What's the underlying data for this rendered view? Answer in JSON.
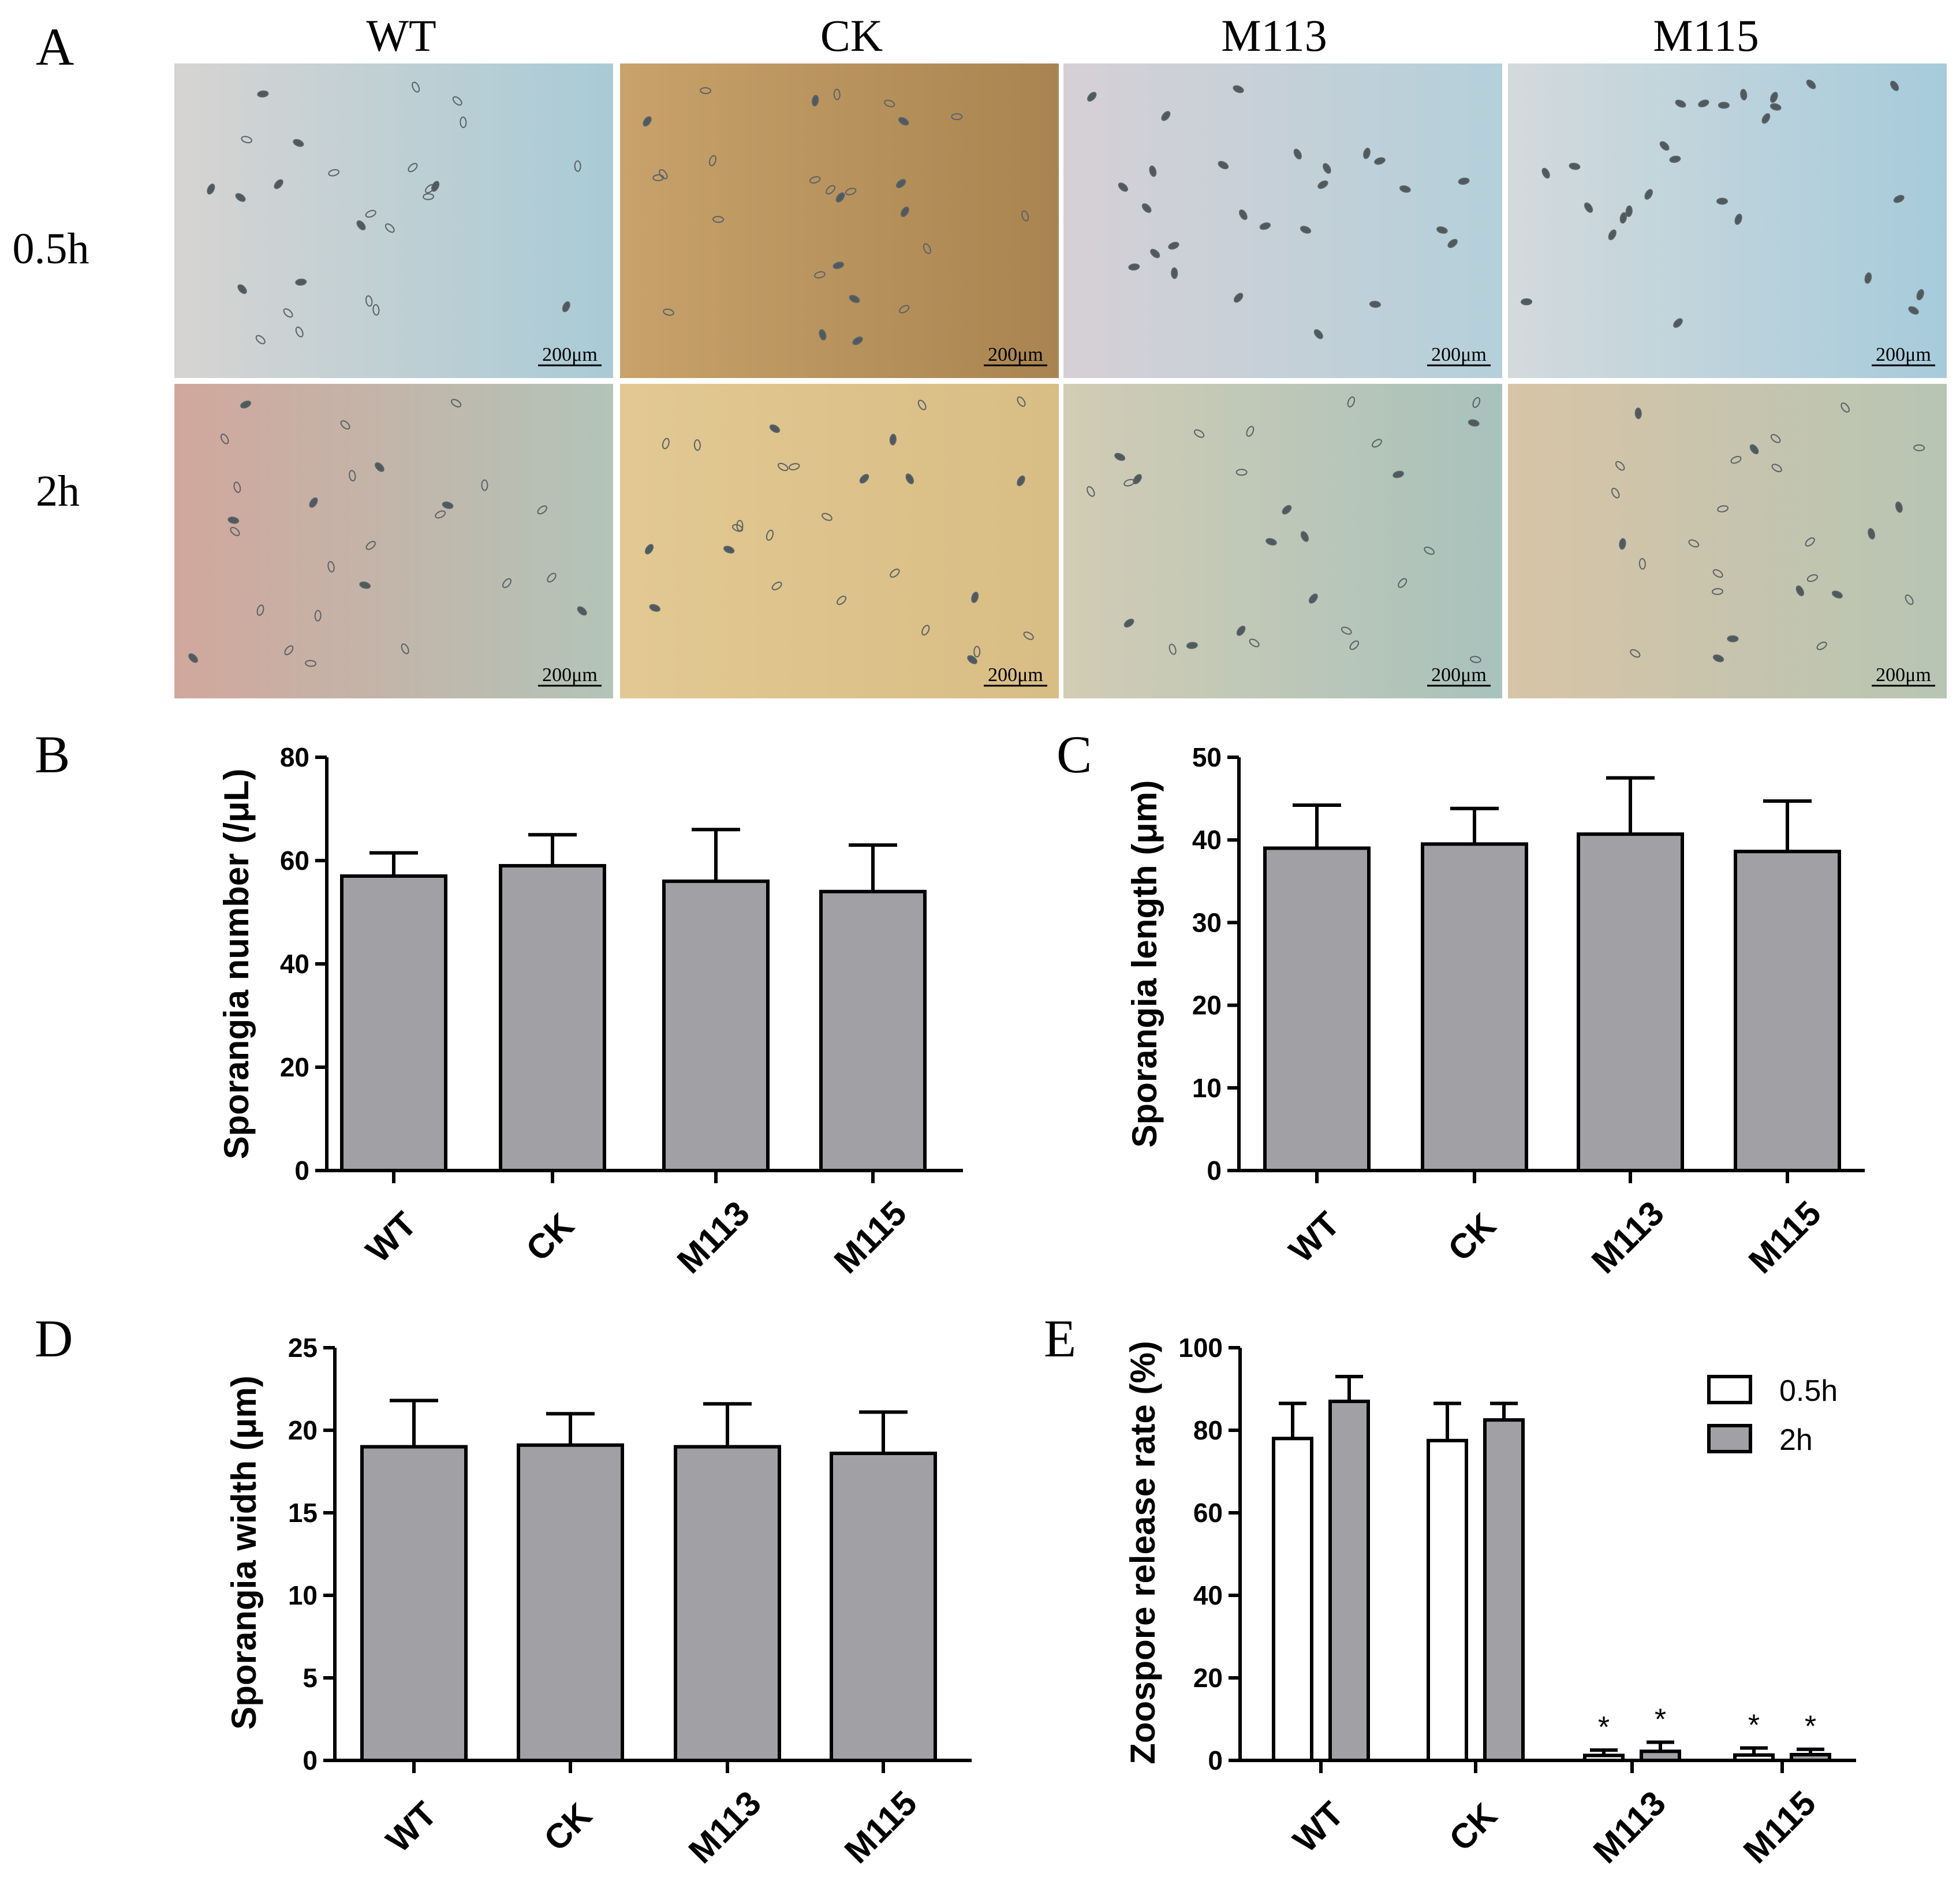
{
  "figure": {
    "panel_a": {
      "letter": "A",
      "columns": [
        "WT",
        "CK",
        "M113",
        "M115"
      ],
      "rows": [
        "0.5h",
        "2h"
      ],
      "scale_bar": "200μm",
      "tile_colors": [
        [
          "#c9d8dc",
          "#b8955f",
          "#cfd5dc",
          "#c9dbe2"
        ],
        [
          "#c4b9a8",
          "#ddc48f",
          "#c9cdbb",
          "#cbc7ad"
        ]
      ]
    }
  },
  "chart_data": [
    {
      "id": "B",
      "letter": "B",
      "type": "bar",
      "categories": [
        "WT",
        "CK",
        "M113",
        "M115"
      ],
      "series": [
        {
          "name": "Sporangia number",
          "values": [
            57,
            59,
            56,
            54
          ],
          "errors": [
            4.5,
            6,
            10,
            9
          ],
          "fill": "#a0a0a5"
        }
      ],
      "ylabel": "Sporangia number (/μL)",
      "ylim": [
        0,
        80
      ],
      "yticks": [
        0,
        20,
        40,
        60,
        80
      ]
    },
    {
      "id": "C",
      "letter": "C",
      "type": "bar",
      "categories": [
        "WT",
        "CK",
        "M113",
        "M115"
      ],
      "series": [
        {
          "name": "Sporangia length",
          "values": [
            39,
            39.5,
            40.7,
            38.6
          ],
          "errors": [
            5.2,
            4.3,
            6.8,
            6.1
          ],
          "fill": "#a0a0a5"
        }
      ],
      "ylabel": "Sporangia length (μm)",
      "ylim": [
        0,
        50
      ],
      "yticks": [
        0,
        10,
        20,
        30,
        40,
        50
      ]
    },
    {
      "id": "D",
      "letter": "D",
      "type": "bar",
      "categories": [
        "WT",
        "CK",
        "M113",
        "M115"
      ],
      "series": [
        {
          "name": "Sporangia width",
          "values": [
            19,
            19.1,
            19,
            18.6
          ],
          "errors": [
            2.8,
            1.9,
            2.6,
            2.5
          ],
          "fill": "#a0a0a5"
        }
      ],
      "ylabel": "Sporangia width (μm)",
      "ylim": [
        0,
        25
      ],
      "yticks": [
        0,
        5,
        10,
        15,
        20,
        25
      ]
    },
    {
      "id": "E",
      "letter": "E",
      "type": "bar",
      "categories": [
        "WT",
        "CK",
        "M113",
        "M115"
      ],
      "series": [
        {
          "name": "0.5h",
          "values": [
            78,
            77.5,
            1.2,
            1.3
          ],
          "errors": [
            8.5,
            9,
            1.3,
            1.7
          ],
          "fill": "#ffffff"
        },
        {
          "name": "2h",
          "values": [
            87,
            82.5,
            2.2,
            1.4
          ],
          "errors": [
            6,
            4,
            2.2,
            1.3
          ],
          "fill": "#a0a0a5"
        }
      ],
      "significance": [
        [
          false,
          false,
          true,
          true
        ],
        [
          false,
          false,
          true,
          true
        ]
      ],
      "significance_mark": "*",
      "ylabel": "Zoospore release rate (%)",
      "ylim": [
        0,
        100
      ],
      "yticks": [
        0,
        20,
        40,
        60,
        80,
        100
      ],
      "legend_position": "top-right"
    }
  ]
}
